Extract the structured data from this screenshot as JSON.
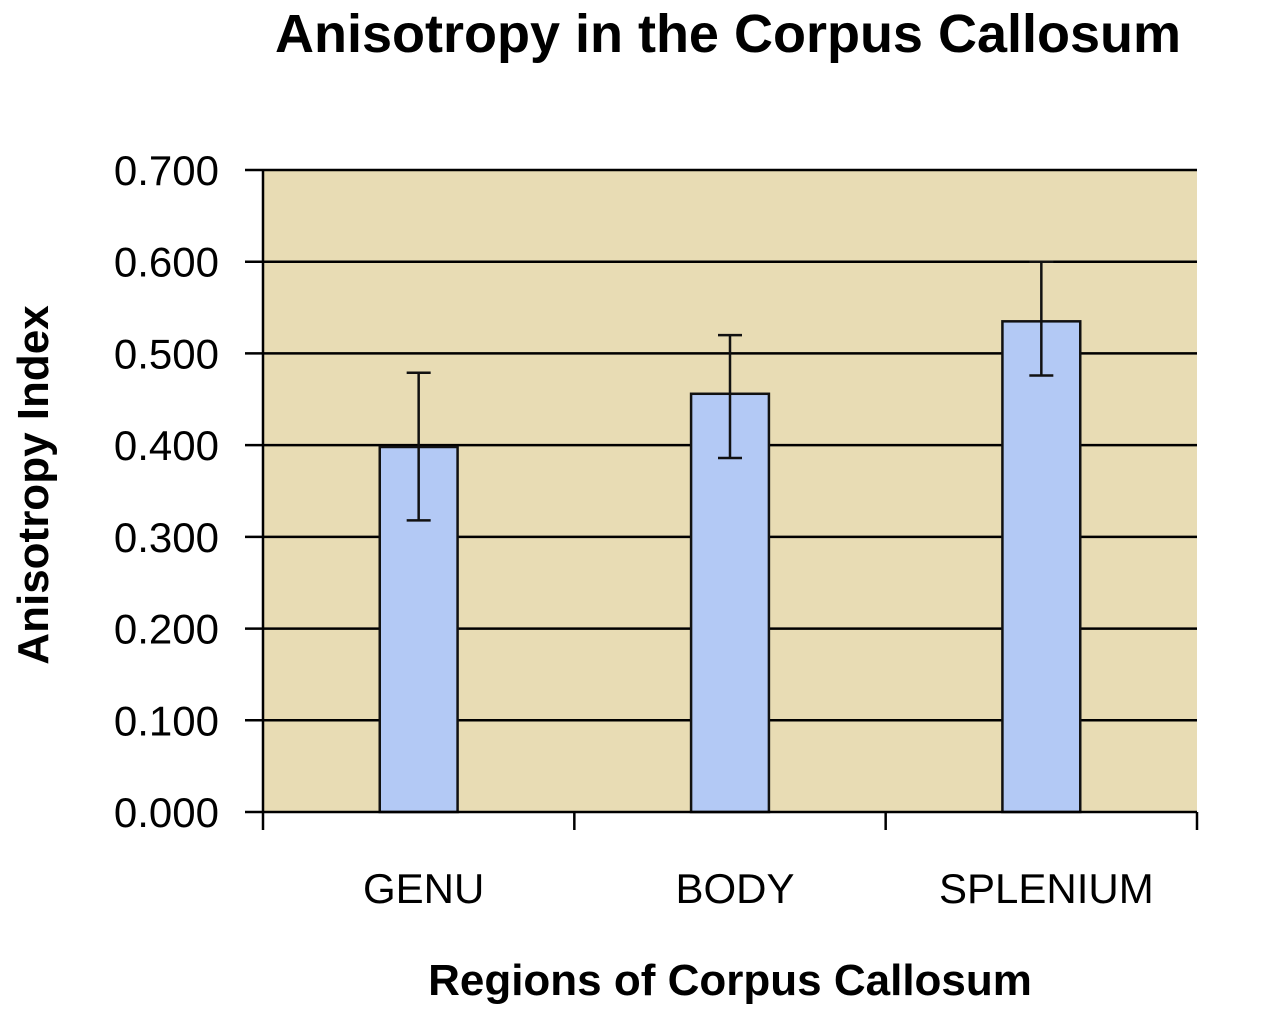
{
  "chart_data": {
    "type": "bar",
    "title": "Anisotropy in the Corpus Callosum",
    "xlabel": "Regions of Corpus Callosum",
    "ylabel": "Anisotropy Index",
    "categories": [
      "GENU",
      "BODY",
      "SPLENIUM"
    ],
    "values": [
      0.398,
      0.456,
      0.535
    ],
    "error_low": [
      0.318,
      0.386,
      0.476
    ],
    "error_high": [
      0.479,
      0.52,
      0.6
    ],
    "ylim": [
      0,
      0.7
    ],
    "yticks": [
      "0.000",
      "0.100",
      "0.200",
      "0.300",
      "0.400",
      "0.500",
      "0.600",
      "0.700"
    ],
    "grid": true,
    "legend": "none",
    "colors": {
      "plot_background": "#e8dcb4",
      "bar_fill": "#b3c9f5",
      "bar_stroke": "#111111",
      "gridline": "#000000"
    }
  }
}
